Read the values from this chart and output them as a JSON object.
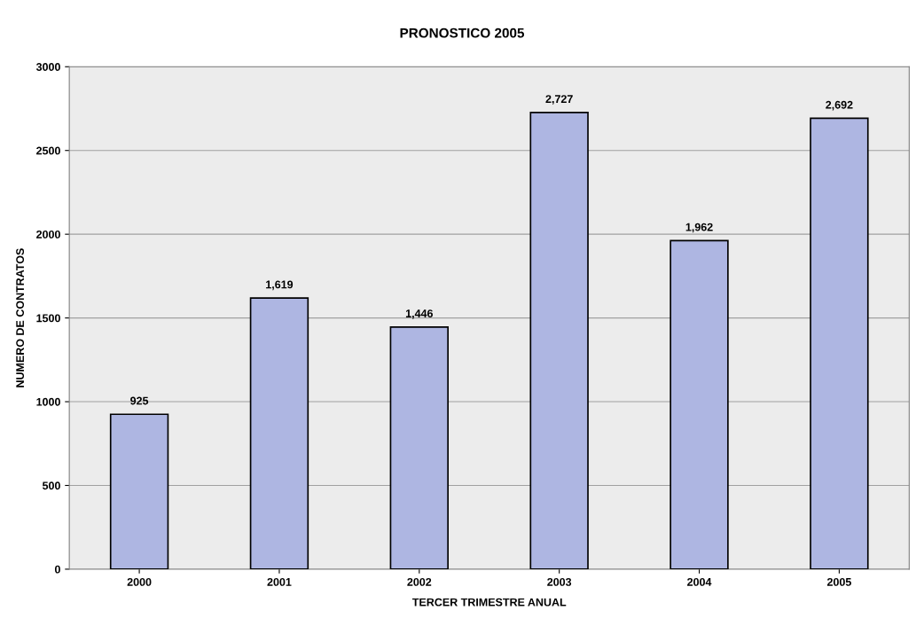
{
  "chart_data": {
    "type": "bar",
    "title": "PRONOSTICO 2005",
    "xlabel": "TERCER TRIMESTRE ANUAL",
    "ylabel": "NUMERO DE CONTRATOS",
    "categories": [
      "2000",
      "2001",
      "2002",
      "2003",
      "2004",
      "2005"
    ],
    "values": [
      925,
      1619,
      1446,
      2727,
      1962,
      2692
    ],
    "value_labels": [
      "925",
      "1,619",
      "1,446",
      "2,727",
      "1,962",
      "2,692"
    ],
    "color": "#aeb6e2",
    "ylim": [
      0,
      3000
    ],
    "yticks": [
      0,
      500,
      1000,
      1500,
      2000,
      2500,
      3000
    ],
    "grid": "y"
  }
}
